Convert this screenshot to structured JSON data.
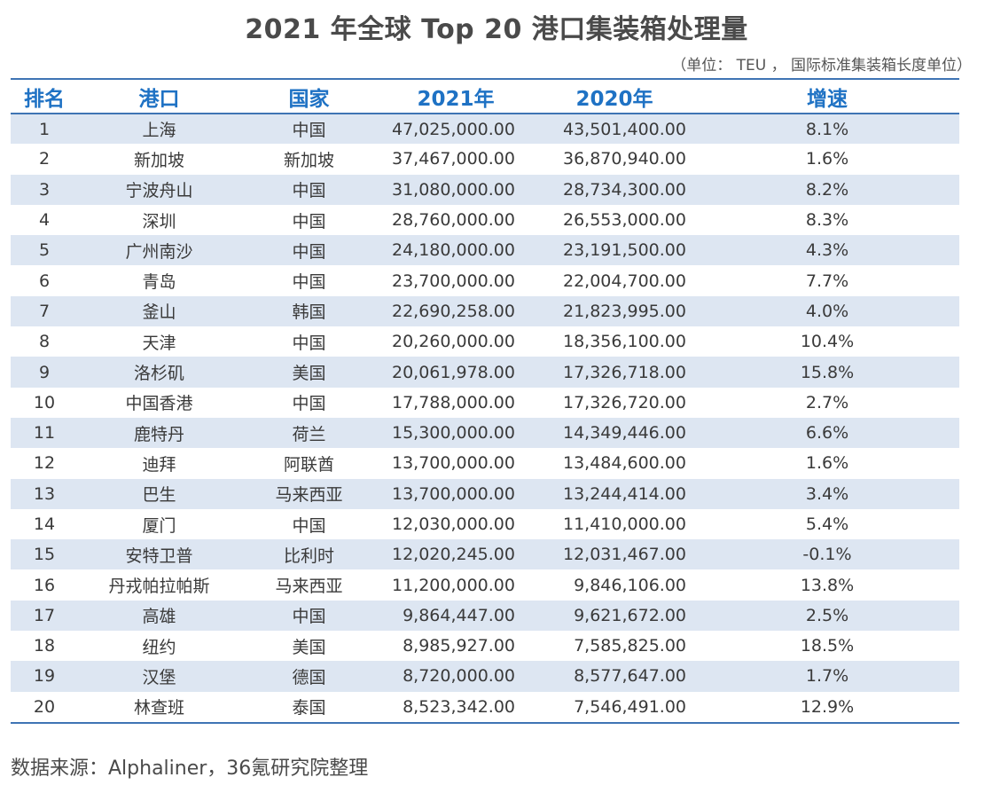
{
  "title": "2021 年全球 Top 20 港口集装箱处理量",
  "unit_note": "（单位： TEU ， 国际标准集装箱长度单位）",
  "columns": [
    "排名",
    "港口",
    "国家",
    "2021年",
    "2020年",
    "增速"
  ],
  "rows": [
    {
      "rank": "1",
      "port": "上海",
      "country": "中国",
      "y2021": "47,025,000.00",
      "y2020": "43,501,400.00",
      "growth": "8.1%"
    },
    {
      "rank": "2",
      "port": "新加坡",
      "country": "新加坡",
      "y2021": "37,467,000.00",
      "y2020": "36,870,940.00",
      "growth": "1.6%"
    },
    {
      "rank": "3",
      "port": "宁波舟山",
      "country": "中国",
      "y2021": "31,080,000.00",
      "y2020": "28,734,300.00",
      "growth": "8.2%"
    },
    {
      "rank": "4",
      "port": "深圳",
      "country": "中国",
      "y2021": "28,760,000.00",
      "y2020": "26,553,000.00",
      "growth": "8.3%"
    },
    {
      "rank": "5",
      "port": "广州南沙",
      "country": "中国",
      "y2021": "24,180,000.00",
      "y2020": "23,191,500.00",
      "growth": "4.3%"
    },
    {
      "rank": "6",
      "port": "青岛",
      "country": "中国",
      "y2021": "23,700,000.00",
      "y2020": "22,004,700.00",
      "growth": "7.7%"
    },
    {
      "rank": "7",
      "port": "釜山",
      "country": "韩国",
      "y2021": "22,690,258.00",
      "y2020": "21,823,995.00",
      "growth": "4.0%"
    },
    {
      "rank": "8",
      "port": "天津",
      "country": "中国",
      "y2021": "20,260,000.00",
      "y2020": "18,356,100.00",
      "growth": "10.4%"
    },
    {
      "rank": "9",
      "port": "洛杉矶",
      "country": "美国",
      "y2021": "20,061,978.00",
      "y2020": "17,326,718.00",
      "growth": "15.8%"
    },
    {
      "rank": "10",
      "port": "中国香港",
      "country": "中国",
      "y2021": "17,788,000.00",
      "y2020": "17,326,720.00",
      "growth": "2.7%"
    },
    {
      "rank": "11",
      "port": "鹿特丹",
      "country": "荷兰",
      "y2021": "15,300,000.00",
      "y2020": "14,349,446.00",
      "growth": "6.6%"
    },
    {
      "rank": "12",
      "port": "迪拜",
      "country": "阿联酋",
      "y2021": "13,700,000.00",
      "y2020": "13,484,600.00",
      "growth": "1.6%"
    },
    {
      "rank": "13",
      "port": "巴生",
      "country": "马来西亚",
      "y2021": "13,700,000.00",
      "y2020": "13,244,414.00",
      "growth": "3.4%"
    },
    {
      "rank": "14",
      "port": "厦门",
      "country": "中国",
      "y2021": "12,030,000.00",
      "y2020": "11,410,000.00",
      "growth": "5.4%"
    },
    {
      "rank": "15",
      "port": "安特卫普",
      "country": "比利时",
      "y2021": "12,020,245.00",
      "y2020": "12,031,467.00",
      "growth": "-0.1%"
    },
    {
      "rank": "16",
      "port": "丹戎帕拉帕斯",
      "country": "马来西亚",
      "y2021": "11,200,000.00",
      "y2020": "9,846,106.00",
      "growth": "13.8%"
    },
    {
      "rank": "17",
      "port": "高雄",
      "country": "中国",
      "y2021": "9,864,447.00",
      "y2020": "9,621,672.00",
      "growth": "2.5%"
    },
    {
      "rank": "18",
      "port": "纽约",
      "country": "美国",
      "y2021": "8,985,927.00",
      "y2020": "7,585,825.00",
      "growth": "18.5%"
    },
    {
      "rank": "19",
      "port": "汉堡",
      "country": "德国",
      "y2021": "8,720,000.00",
      "y2020": "8,577,647.00",
      "growth": "1.7%"
    },
    {
      "rank": "20",
      "port": "林查班",
      "country": "泰国",
      "y2021": "8,523,342.00",
      "y2020": "7,546,491.00",
      "growth": "12.9%"
    }
  ],
  "source": "数据来源：Alphaliner，36氪研究院整理",
  "colors": {
    "header_text": "#1f72c4",
    "rule": "#3f74b4",
    "stripe": "#dde6f2"
  }
}
